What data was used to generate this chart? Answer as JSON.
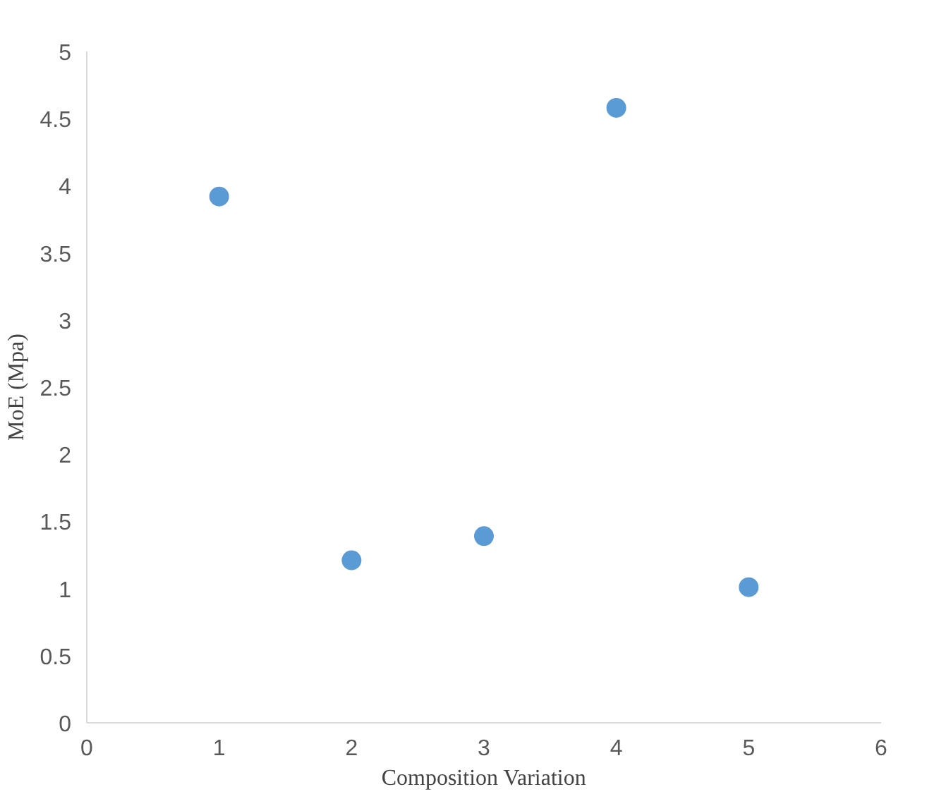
{
  "chart_data": {
    "type": "scatter",
    "xlabel": "Composition Variation",
    "ylabel": "MoE (Mpa)",
    "x": [
      1,
      2,
      3,
      4,
      5
    ],
    "series": [
      {
        "color": "#5b9bd5",
        "values": [
          3.92,
          1.21,
          1.39,
          4.58,
          1.01
        ]
      }
    ],
    "xlim": [
      0,
      6
    ],
    "xticks": [
      0,
      1,
      2,
      3,
      4,
      5,
      6
    ],
    "ylim": [
      0,
      5
    ],
    "yticks": [
      0,
      0.5,
      1,
      1.5,
      2,
      2.5,
      3,
      3.5,
      4,
      4.5,
      5
    ],
    "marker": "circle"
  }
}
